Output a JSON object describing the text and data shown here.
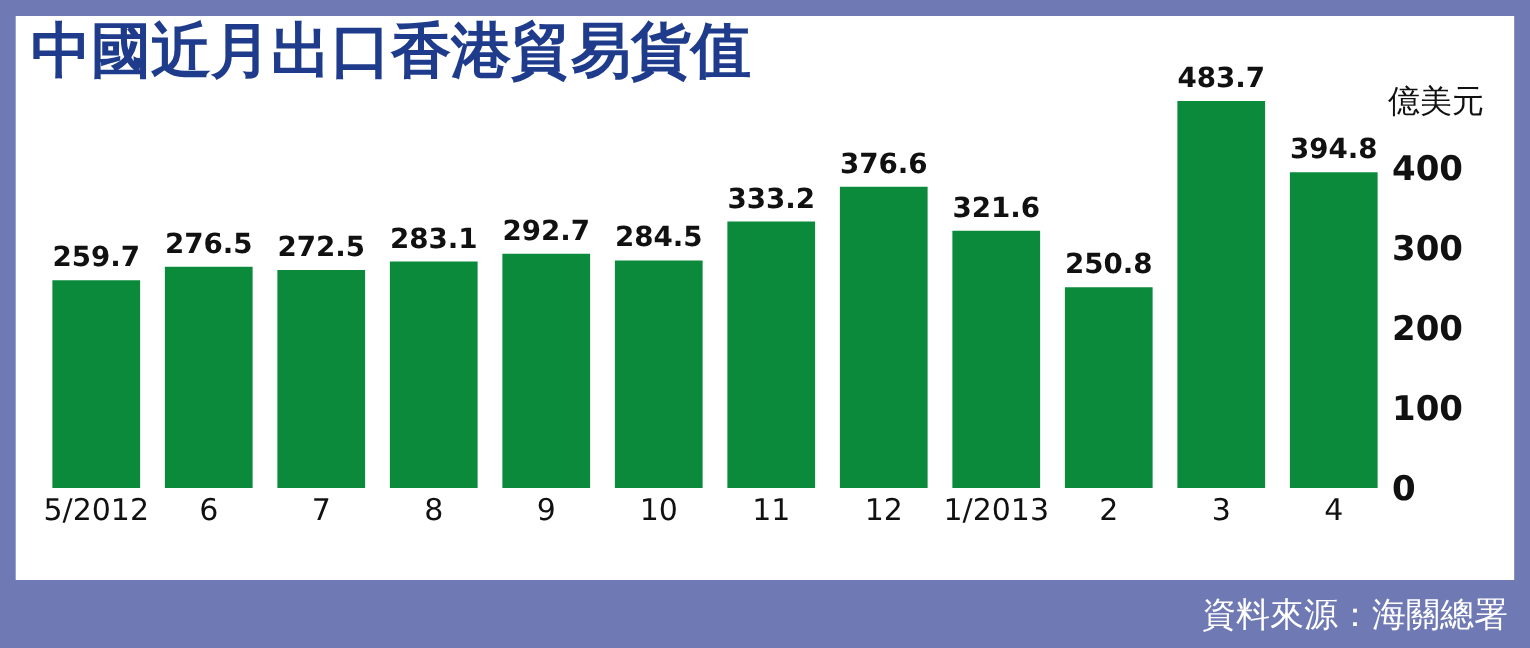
{
  "chart_data": {
    "type": "bar",
    "title": "中國近月出口香港貿易貨值",
    "ylabel": "億美元",
    "categories": [
      "5/2012",
      "6",
      "7",
      "8",
      "9",
      "10",
      "11",
      "12",
      "1/2013",
      "2",
      "3",
      "4"
    ],
    "values": [
      259.7,
      276.5,
      272.5,
      283.1,
      292.7,
      284.5,
      333.2,
      376.6,
      321.6,
      250.8,
      483.7,
      394.8
    ],
    "color": "#0b8a3c",
    "data_labels": true,
    "grid": false,
    "ylim": [
      0,
      500
    ],
    "yticks": [
      0,
      100,
      200,
      300,
      400
    ],
    "annotations": [
      "資料來源：海關總署"
    ]
  }
}
